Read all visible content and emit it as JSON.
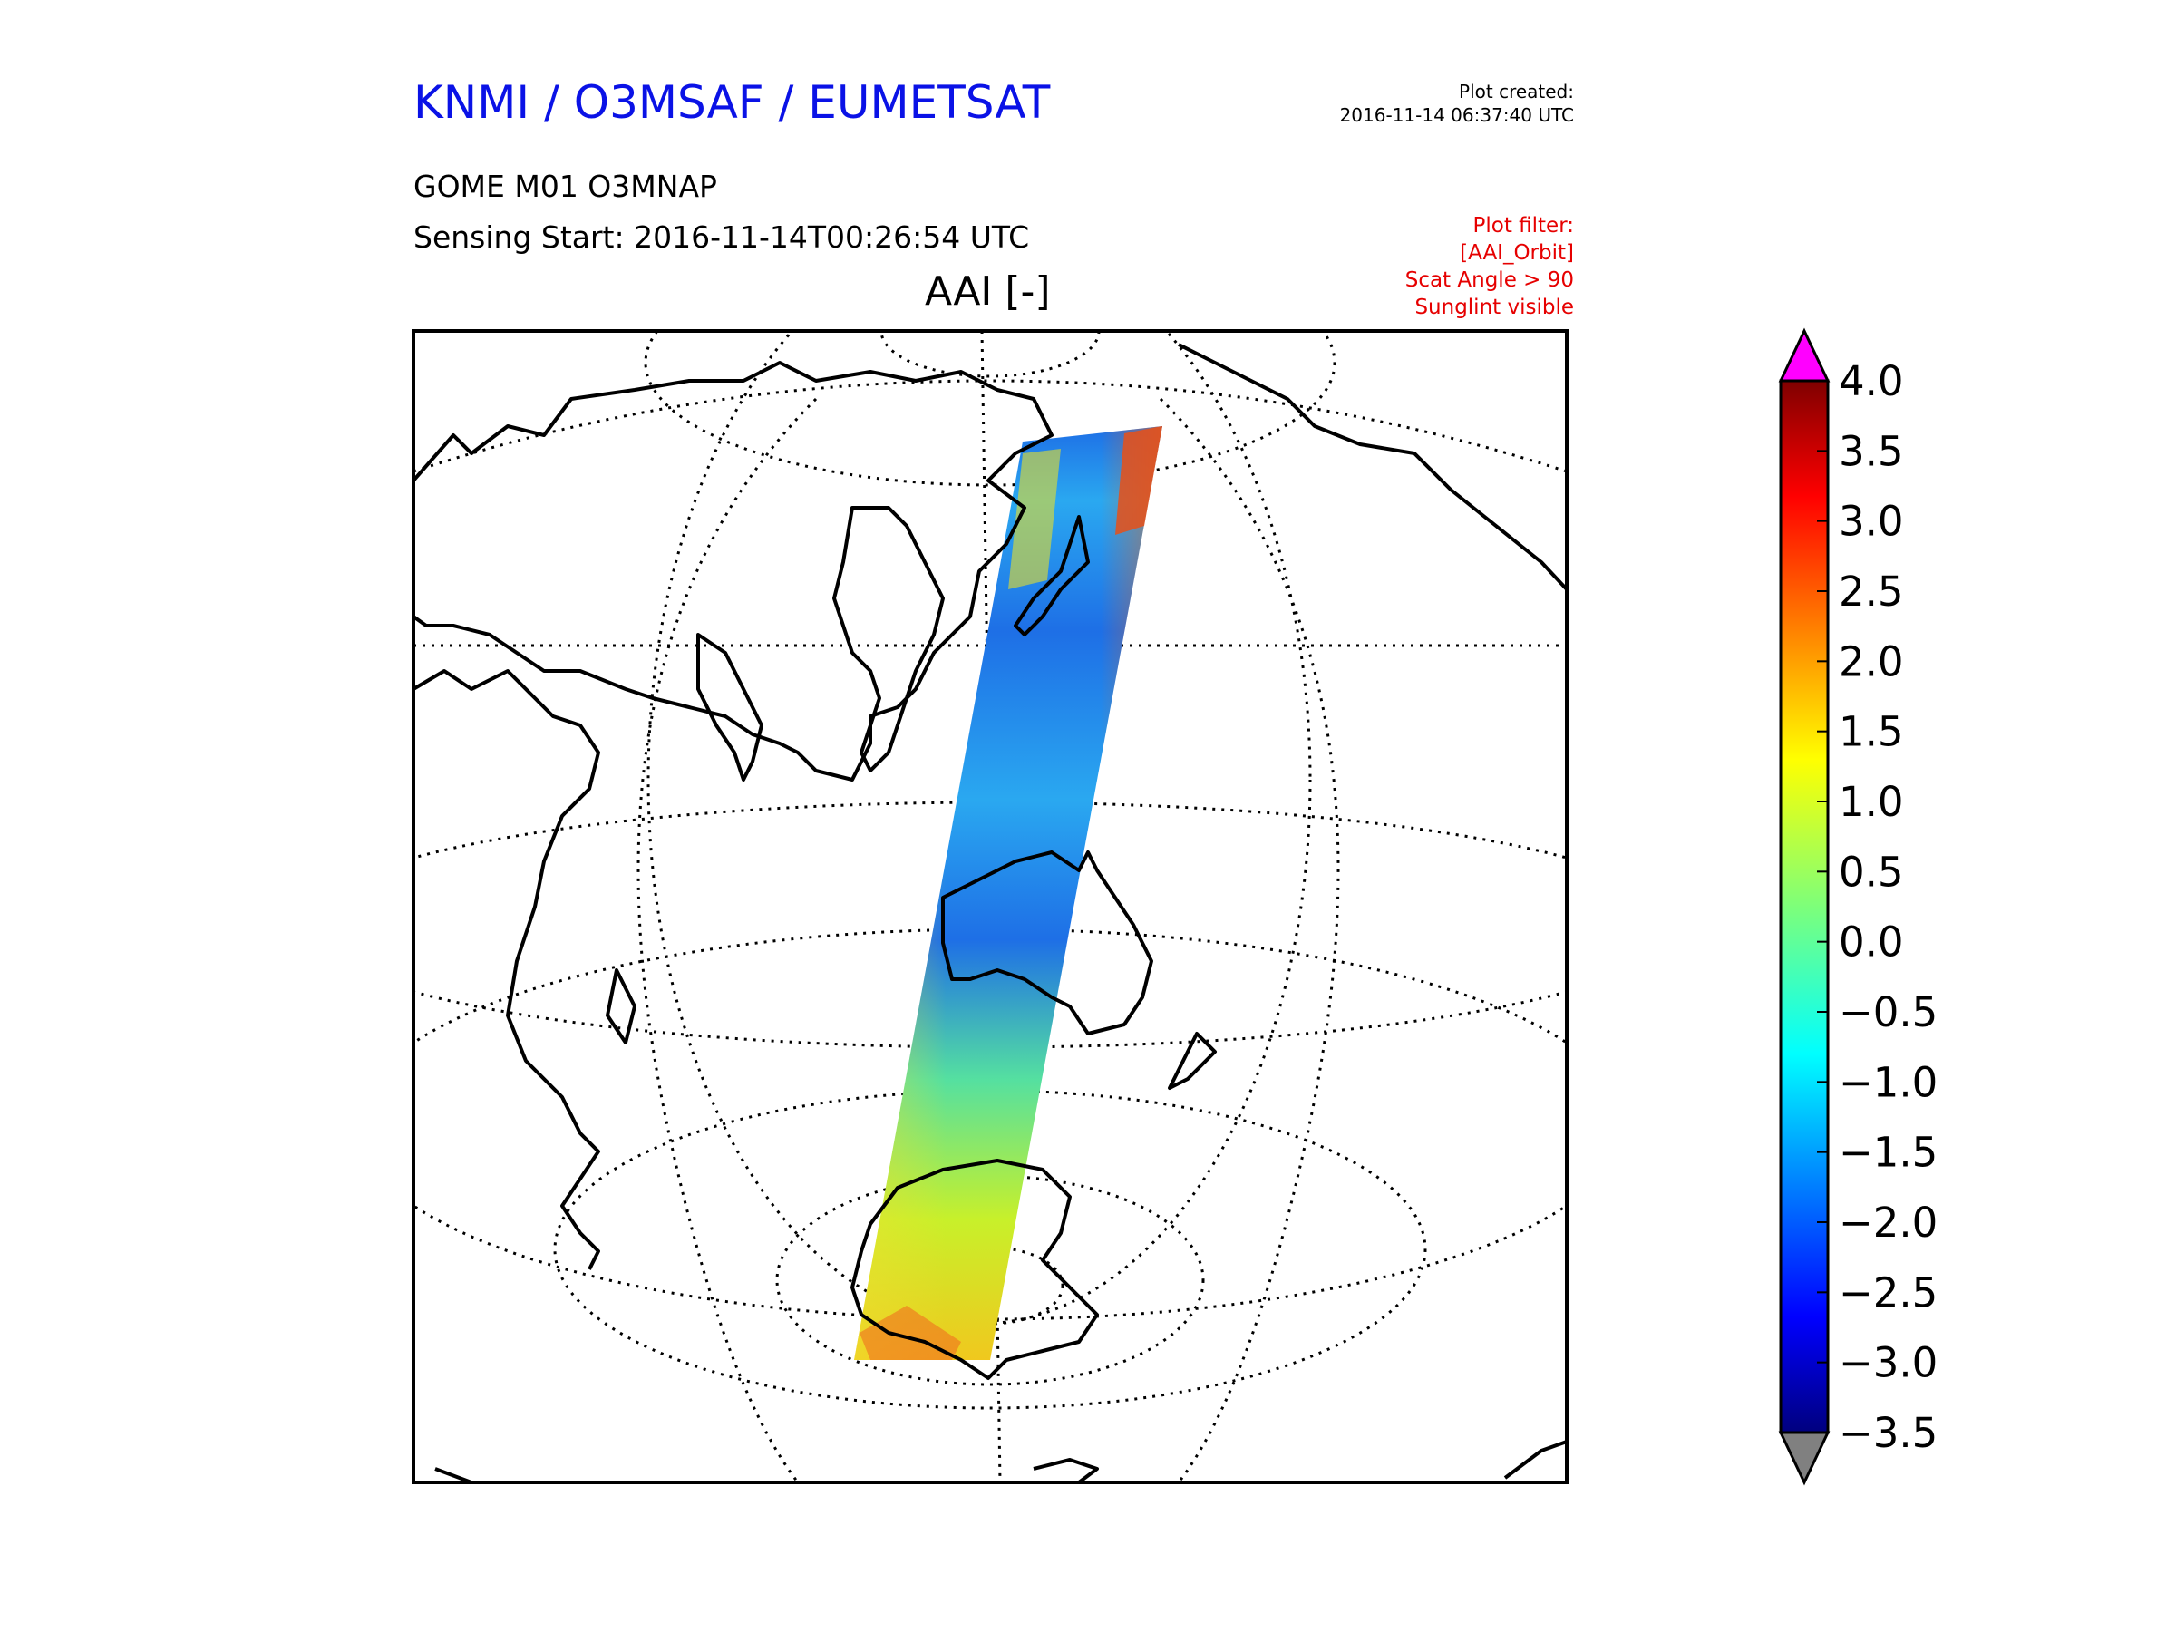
{
  "header": {
    "title": "KNMI / O3MSAF / EUMETSAT",
    "plot_created_label": "Plot created:",
    "plot_created_value": "2016-11-14 06:37:40 UTC",
    "instrument": "GOME M01 O3MNAP",
    "sensing_start": "Sensing Start: 2016-11-14T00:26:54 UTC"
  },
  "filter": {
    "label": "Plot filter:",
    "lines": [
      "[AAI_Orbit]",
      "Scat Angle > 90",
      "Sunglint visible"
    ]
  },
  "map": {
    "title": "AAI [-]",
    "projection": "orthographic",
    "graticule": "dotted",
    "swath_colors": [
      "#1e6fe6",
      "#2aa8f0",
      "#55e0a0",
      "#c8f02a",
      "#f0c81e",
      "#f06414"
    ]
  },
  "colorbar": {
    "min": -3.5,
    "max": 4.0,
    "ticks": [
      "4.0",
      "3.5",
      "3.0",
      "2.5",
      "2.0",
      "1.5",
      "1.0",
      "0.5",
      "0.0",
      "−0.5",
      "−1.0",
      "−1.5",
      "−2.0",
      "−2.5",
      "−3.0",
      "−3.5"
    ],
    "over_color": "#ff00ff",
    "under_color": "#808080",
    "colormap": "jet"
  },
  "colors": {
    "title": "#0a12e6",
    "filter": "#e60000"
  }
}
